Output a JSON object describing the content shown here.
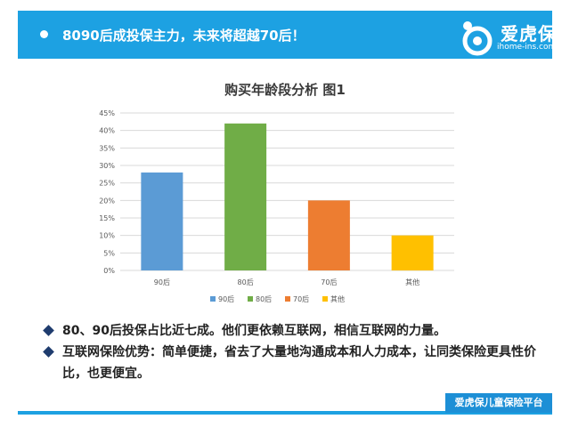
{
  "header": {
    "title": "8090后成投保主力，未来将超越70后！",
    "brand_name": "爱虎保",
    "brand_url": "ihome-ins.com"
  },
  "chart_data": {
    "type": "bar",
    "title": "购买年龄段分析 图1",
    "categories": [
      "90后",
      "80后",
      "70后",
      "其他"
    ],
    "values": [
      0.28,
      0.42,
      0.2,
      0.1
    ],
    "colors": [
      "#5b9bd5",
      "#70ad47",
      "#ed7d31",
      "#ffc000"
    ],
    "yticks": [
      "0%",
      "5%",
      "10%",
      "15%",
      "20%",
      "25%",
      "30%",
      "35%",
      "40%",
      "45%"
    ],
    "ylim": [
      0,
      0.45
    ],
    "grid": true,
    "legend_position": "bottom",
    "legend": [
      "90后",
      "80后",
      "70后",
      "其他"
    ]
  },
  "points": [
    "80、90后投保占比近七成。他们更依赖互联网，相信互联网的力量。",
    "互联网保险优势：简单便捷，省去了大量地沟通成本和人力成本，让同类保险更具性价比，也更便宜。"
  ],
  "footer": {
    "badge": "爱虎保儿童保险平台"
  }
}
